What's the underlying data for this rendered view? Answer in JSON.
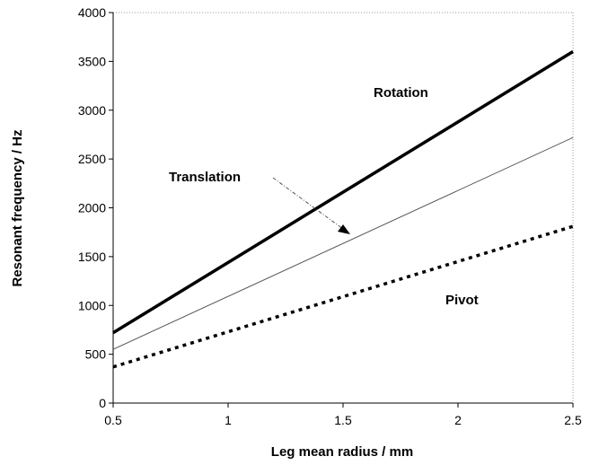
{
  "chart_data": {
    "type": "line",
    "xlabel": "Leg mean radius / mm",
    "ylabel": "Resonant frequency / Hz",
    "xlim": [
      0.5,
      2.5
    ],
    "ylim": [
      0,
      4000
    ],
    "xticks": [
      "0.5",
      "1",
      "1.5",
      "2",
      "2.5"
    ],
    "yticks": [
      "0",
      "500",
      "1000",
      "1500",
      "2000",
      "2500",
      "3000",
      "3500",
      "4000"
    ],
    "grid": false,
    "series": [
      {
        "name": "Rotation",
        "x": [
          0.5,
          2.5
        ],
        "y": [
          720,
          3600
        ],
        "style": "thick-solid",
        "color": "#000000"
      },
      {
        "name": "Translation",
        "x": [
          0.5,
          2.5
        ],
        "y": [
          550,
          2720
        ],
        "style": "thin-solid",
        "color": "#555555"
      },
      {
        "name": "Pivot",
        "x": [
          0.5,
          2.5
        ],
        "y": [
          370,
          1810
        ],
        "style": "dotted",
        "color": "#000000"
      }
    ],
    "annotations": [
      {
        "text": "Rotation"
      },
      {
        "text": "Translation"
      },
      {
        "text": "Pivot"
      }
    ]
  }
}
